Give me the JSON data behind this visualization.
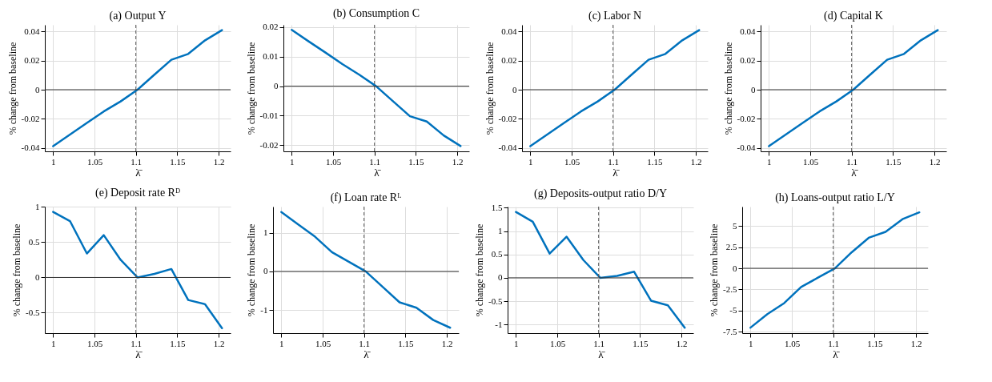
{
  "chart_data": [
    {
      "type": "line",
      "title": "(a) Output Y",
      "xlabel": "λ̄",
      "ylabel": "% change from baseline",
      "x": [
        1,
        1.0204,
        1.0408,
        1.0612,
        1.0816,
        1.102,
        1.1224,
        1.1429,
        1.1633,
        1.1837,
        1.2041
      ],
      "series": [
        {
          "color": "#0072bd",
          "values": [
            -0.0386,
            -0.0307,
            -0.0227,
            -0.0149,
            -0.008,
            0,
            0.0103,
            0.0205,
            0.0245,
            0.0338,
            0.0408
          ]
        }
      ],
      "xlim": [
        0.99,
        1.2145
      ],
      "xticks": [
        1,
        1.05,
        1.1,
        1.15,
        1.2
      ],
      "ylim": [
        -0.0422,
        0.0444
      ],
      "yticks": [
        -0.04,
        -0.02,
        0,
        0.02,
        0.04
      ],
      "grid": true,
      "marker": "none",
      "line_style": "solid",
      "ref_lines": [
        {
          "axis": "x",
          "value": 1.1,
          "color": "#555555",
          "line_style": "dashed"
        },
        {
          "axis": "y",
          "value": 0,
          "color": "#333333",
          "line_style": "solid"
        }
      ]
    },
    {
      "type": "line",
      "title": "(b) Consumption C",
      "xlabel": "λ̄",
      "ylabel": "% change from baseline",
      "x": [
        1,
        1.0204,
        1.0408,
        1.0612,
        1.0816,
        1.102,
        1.1224,
        1.1429,
        1.1633,
        1.1837,
        1.2041
      ],
      "series": [
        {
          "color": "#0072bd",
          "values": [
            0.0191,
            0.0152,
            0.0114,
            0.0075,
            0.0039,
            0,
            -0.0051,
            -0.0102,
            -0.012,
            -0.0167,
            -0.0203
          ]
        }
      ],
      "xlim": [
        0.99,
        1.2145
      ],
      "xticks": [
        1,
        1.05,
        1.1,
        1.15,
        1.2
      ],
      "ylim": [
        -0.0221,
        0.0208
      ],
      "yticks": [
        -0.02,
        -0.01,
        0,
        0.01,
        0.02
      ],
      "grid": true,
      "marker": "none",
      "line_style": "solid",
      "ref_lines": [
        {
          "axis": "x",
          "value": 1.1,
          "color": "#555555",
          "line_style": "dashed"
        },
        {
          "axis": "y",
          "value": 0,
          "color": "#333333",
          "line_style": "solid"
        }
      ]
    },
    {
      "type": "line",
      "title": "(c) Labor N",
      "xlabel": "λ̄",
      "ylabel": "% change from baseline",
      "x": [
        1,
        1.0204,
        1.0408,
        1.0612,
        1.0816,
        1.102,
        1.1224,
        1.1429,
        1.1633,
        1.1837,
        1.2041
      ],
      "series": [
        {
          "color": "#0072bd",
          "values": [
            -0.0386,
            -0.0307,
            -0.0227,
            -0.0149,
            -0.008,
            0,
            0.0103,
            0.0205,
            0.0245,
            0.0338,
            0.0408
          ]
        }
      ],
      "xlim": [
        0.99,
        1.2145
      ],
      "xticks": [
        1,
        1.05,
        1.1,
        1.15,
        1.2
      ],
      "ylim": [
        -0.0422,
        0.0444
      ],
      "yticks": [
        -0.04,
        -0.02,
        0,
        0.02,
        0.04
      ],
      "grid": true,
      "marker": "none",
      "line_style": "solid",
      "ref_lines": [
        {
          "axis": "x",
          "value": 1.1,
          "color": "#555555",
          "line_style": "dashed"
        },
        {
          "axis": "y",
          "value": 0,
          "color": "#333333",
          "line_style": "solid"
        }
      ]
    },
    {
      "type": "line",
      "title": "(d) Capital K",
      "xlabel": "λ̄",
      "ylabel": "% change from baseline",
      "x": [
        1,
        1.0204,
        1.0408,
        1.0612,
        1.0816,
        1.102,
        1.1224,
        1.1429,
        1.1633,
        1.1837,
        1.2041
      ],
      "series": [
        {
          "color": "#0072bd",
          "values": [
            -0.0386,
            -0.0307,
            -0.0227,
            -0.0149,
            -0.008,
            0,
            0.0103,
            0.0205,
            0.0245,
            0.0338,
            0.0408
          ]
        }
      ],
      "xlim": [
        0.99,
        1.2145
      ],
      "xticks": [
        1,
        1.05,
        1.1,
        1.15,
        1.2
      ],
      "ylim": [
        -0.0422,
        0.0444
      ],
      "yticks": [
        -0.04,
        -0.02,
        0,
        0.02,
        0.04
      ],
      "grid": true,
      "marker": "none",
      "line_style": "solid",
      "ref_lines": [
        {
          "axis": "x",
          "value": 1.1,
          "color": "#555555",
          "line_style": "dashed"
        },
        {
          "axis": "y",
          "value": 0,
          "color": "#333333",
          "line_style": "solid"
        }
      ]
    },
    {
      "type": "line",
      "title": "(e) Deposit rate Rᴰ",
      "xlabel": "λ̄",
      "ylabel": "% change from baseline",
      "x": [
        1,
        1.0204,
        1.0408,
        1.0612,
        1.0816,
        1.102,
        1.1224,
        1.1429,
        1.1633,
        1.1837,
        1.2041
      ],
      "series": [
        {
          "color": "#0072bd",
          "values": [
            0.93,
            0.8,
            0.34,
            0.6,
            0.25,
            0,
            0.05,
            0.12,
            -0.32,
            -0.38,
            -0.72
          ]
        }
      ],
      "xlim": [
        0.99,
        1.2145
      ],
      "xticks": [
        1,
        1.05,
        1.1,
        1.15,
        1.2
      ],
      "ylim": [
        -0.79,
        1.005
      ],
      "yticks": [
        -0.5,
        0,
        0.5,
        1
      ],
      "grid": true,
      "marker": "none",
      "line_style": "solid",
      "ref_lines": [
        {
          "axis": "x",
          "value": 1.1,
          "color": "#555555",
          "line_style": "dashed"
        },
        {
          "axis": "y",
          "value": 0,
          "color": "#333333",
          "line_style": "solid"
        }
      ]
    },
    {
      "type": "line",
      "title": "(f) Loan rate Rᴸ",
      "xlabel": "λ̄",
      "ylabel": "% change from baseline",
      "x": [
        1,
        1.0204,
        1.0408,
        1.0612,
        1.0816,
        1.102,
        1.1224,
        1.1429,
        1.1633,
        1.1837,
        1.2041
      ],
      "series": [
        {
          "color": "#0072bd",
          "values": [
            1.54,
            1.22,
            0.9,
            0.5,
            0.25,
            0,
            -0.4,
            -0.8,
            -0.94,
            -1.26,
            -1.46
          ]
        }
      ],
      "xlim": [
        0.99,
        1.2145
      ],
      "xticks": [
        1,
        1.05,
        1.1,
        1.15,
        1.2
      ],
      "ylim": [
        -1.6,
        1.68
      ],
      "yticks": [
        -1,
        0,
        1
      ],
      "grid": true,
      "marker": "none",
      "line_style": "solid",
      "ref_lines": [
        {
          "axis": "x",
          "value": 1.1,
          "color": "#555555",
          "line_style": "dashed"
        },
        {
          "axis": "y",
          "value": 0,
          "color": "#333333",
          "line_style": "solid"
        }
      ]
    },
    {
      "type": "line",
      "title": "(g) Deposits-output ratio D/Y",
      "xlabel": "λ̄",
      "ylabel": "% change from baseline",
      "x": [
        1,
        1.0204,
        1.0408,
        1.0612,
        1.0816,
        1.102,
        1.1224,
        1.1429,
        1.1633,
        1.1837,
        1.2041
      ],
      "series": [
        {
          "color": "#0072bd",
          "values": [
            1.41,
            1.2,
            0.52,
            0.88,
            0.38,
            0,
            0.04,
            0.13,
            -0.49,
            -0.59,
            -1.07
          ]
        }
      ],
      "xlim": [
        0.99,
        1.2145
      ],
      "xticks": [
        1,
        1.05,
        1.1,
        1.15,
        1.2
      ],
      "ylim": [
        -1.185,
        1.525
      ],
      "yticks": [
        -1,
        -0.5,
        0,
        0.5,
        1,
        1.5
      ],
      "grid": true,
      "marker": "none",
      "line_style": "solid",
      "ref_lines": [
        {
          "axis": "x",
          "value": 1.1,
          "color": "#555555",
          "line_style": "dashed"
        },
        {
          "axis": "y",
          "value": 0,
          "color": "#333333",
          "line_style": "solid"
        }
      ]
    },
    {
      "type": "line",
      "title": "(h) Loans-output ratio L/Y",
      "xlabel": "λ̄",
      "ylabel": "% change from baseline",
      "x": [
        1,
        1.0204,
        1.0408,
        1.0612,
        1.0816,
        1.102,
        1.1224,
        1.1429,
        1.1633,
        1.1837,
        1.2041
      ],
      "series": [
        {
          "color": "#0072bd",
          "values": [
            -7.0,
            -5.4,
            -4.1,
            -2.2,
            -1.1,
            0,
            1.9,
            3.6,
            4.3,
            5.8,
            6.6
          ]
        }
      ],
      "xlim": [
        0.99,
        1.2145
      ],
      "xticks": [
        1,
        1.05,
        1.1,
        1.15,
        1.2
      ],
      "ylim": [
        -7.65,
        7.28
      ],
      "yticks": [
        -7.5,
        -5,
        -2.5,
        0,
        2.5,
        5
      ],
      "grid": true,
      "marker": "none",
      "line_style": "solid",
      "ref_lines": [
        {
          "axis": "x",
          "value": 1.1,
          "color": "#555555",
          "line_style": "dashed"
        },
        {
          "axis": "y",
          "value": 0,
          "color": "#333333",
          "line_style": "solid"
        }
      ]
    }
  ]
}
